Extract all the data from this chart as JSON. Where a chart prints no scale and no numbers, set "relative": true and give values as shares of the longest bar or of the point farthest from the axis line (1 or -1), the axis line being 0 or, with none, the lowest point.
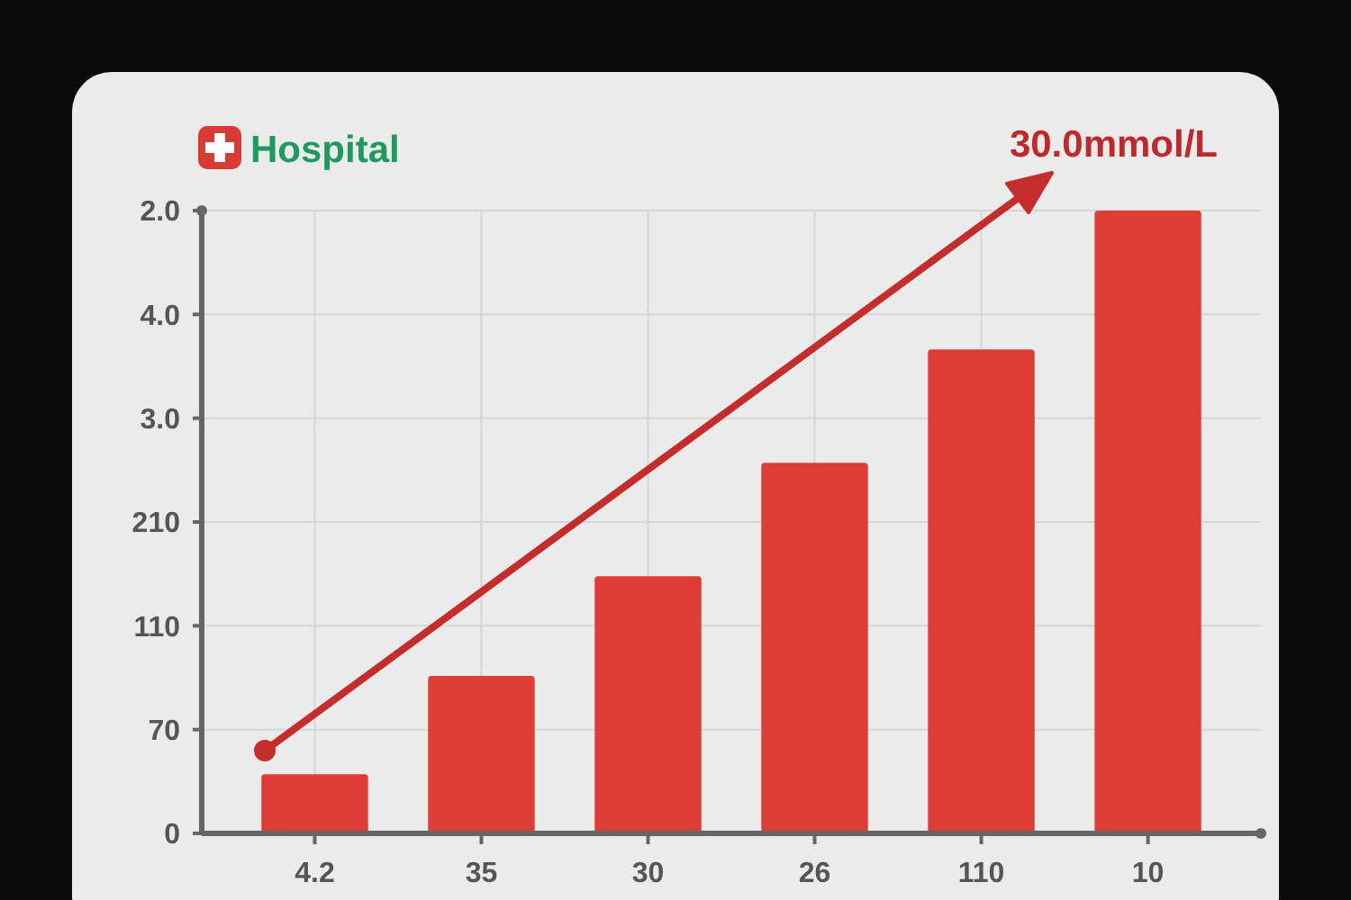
{
  "chart_data": {
    "type": "bar",
    "title": "Hospital",
    "categories": [
      "4.2",
      "35",
      "30",
      "26",
      "110",
      "10"
    ],
    "values": [
      0.095,
      0.253,
      0.413,
      0.595,
      0.777,
      1.0
    ],
    "relative": true,
    "color": "#e03c36",
    "grid": true,
    "annotations": [
      "0",
      "70",
      "110",
      "210",
      "3.0",
      "4.0",
      "2.0",
      "30.0mmol/L"
    ]
  }
}
